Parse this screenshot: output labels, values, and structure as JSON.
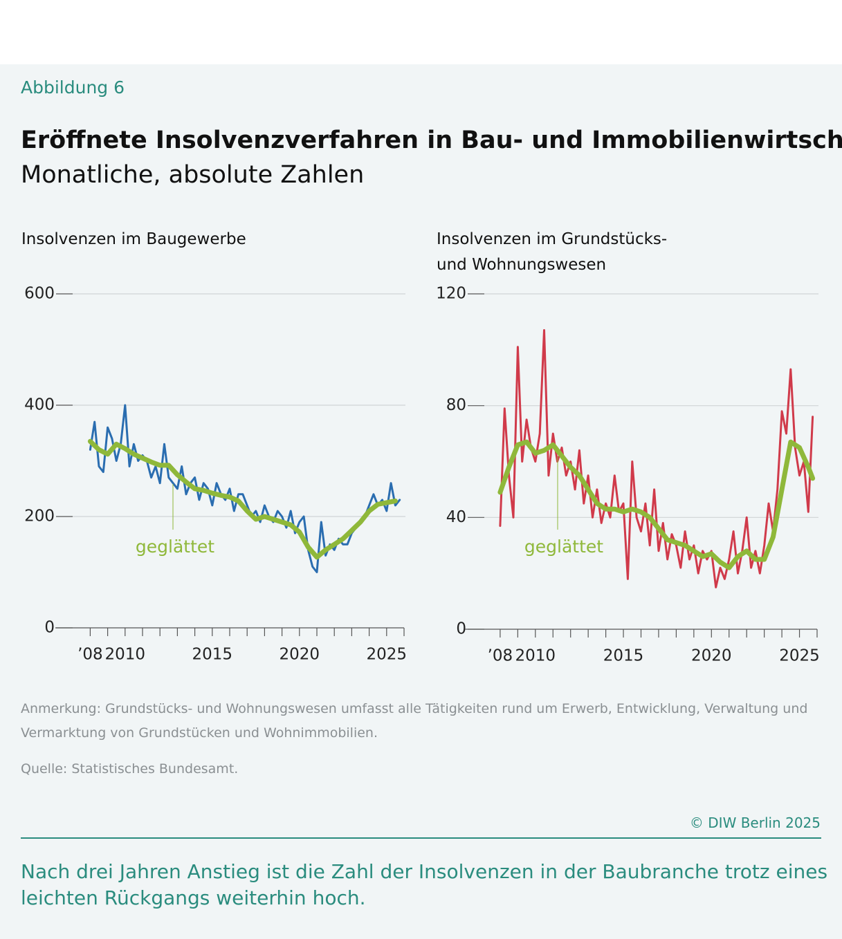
{
  "header": {
    "figure": "Abbildung 6",
    "title": "Eröffnete Insolvenzverfahren in Bau- und Immobilienwirtschaft",
    "subtitle": "Monatliche, absolute Zahlen"
  },
  "chart_data": [
    {
      "type": "line",
      "title": "Insolvenzen im Baugewerbe",
      "xlim": [
        2006,
        2026
      ],
      "xticks": [
        {
          "value": 2008,
          "label": "’08"
        },
        2010,
        2015,
        2020,
        2025
      ],
      "xminorticks": [
        2008,
        2009,
        2010,
        2011,
        2012,
        2013,
        2014,
        2015,
        2016,
        2017,
        2018,
        2019,
        2020,
        2021,
        2022,
        2023,
        2024,
        2025,
        2026
      ],
      "ylim": [
        0,
        600
      ],
      "yticks": [
        0,
        200,
        400,
        600
      ],
      "grid": true,
      "series": [
        {
          "color": "#2a6db0",
          "x": [
            2008,
            2008.25,
            2008.5,
            2008.75,
            2009,
            2009.25,
            2009.5,
            2009.75,
            2010,
            2010.25,
            2010.5,
            2010.75,
            2011,
            2011.25,
            2011.5,
            2011.75,
            2012,
            2012.25,
            2012.5,
            2012.75,
            2013,
            2013.25,
            2013.5,
            2013.75,
            2014,
            2014.25,
            2014.5,
            2014.75,
            2015,
            2015.25,
            2015.5,
            2015.75,
            2016,
            2016.25,
            2016.5,
            2016.75,
            2017,
            2017.25,
            2017.5,
            2017.75,
            2018,
            2018.25,
            2018.5,
            2018.75,
            2019,
            2019.25,
            2019.5,
            2019.75,
            2020,
            2020.25,
            2020.5,
            2020.75,
            2021,
            2021.25,
            2021.5,
            2021.75,
            2022,
            2022.25,
            2022.5,
            2022.75,
            2023,
            2023.25,
            2023.5,
            2023.75,
            2024,
            2024.25,
            2024.5,
            2024.75,
            2025,
            2025.25,
            2025.5,
            2025.75
          ],
          "values": [
            320,
            370,
            290,
            280,
            360,
            340,
            300,
            330,
            400,
            290,
            330,
            300,
            310,
            300,
            270,
            290,
            260,
            330,
            270,
            260,
            250,
            290,
            240,
            260,
            270,
            230,
            260,
            250,
            220,
            260,
            240,
            230,
            250,
            210,
            240,
            240,
            220,
            200,
            210,
            190,
            220,
            200,
            190,
            210,
            200,
            180,
            210,
            170,
            190,
            200,
            140,
            110,
            100,
            190,
            130,
            150,
            140,
            160,
            150,
            150,
            170,
            180,
            190,
            200,
            220,
            240,
            220,
            230,
            210,
            260,
            220,
            230
          ]
        },
        {
          "name": "geglättet",
          "color": "#8fb83a",
          "x": [
            2008,
            2008.5,
            2009,
            2009.5,
            2010,
            2010.5,
            2011,
            2011.5,
            2012,
            2012.5,
            2013,
            2013.5,
            2014,
            2014.5,
            2015,
            2015.5,
            2016,
            2016.5,
            2017,
            2017.5,
            2018,
            2018.5,
            2019,
            2019.5,
            2020,
            2020.5,
            2021,
            2021.5,
            2022,
            2022.5,
            2023,
            2023.5,
            2024,
            2024.5,
            2025,
            2025.5
          ],
          "values": [
            335,
            320,
            312,
            330,
            322,
            312,
            305,
            298,
            292,
            292,
            275,
            262,
            250,
            247,
            242,
            238,
            235,
            228,
            210,
            195,
            200,
            195,
            190,
            185,
            172,
            145,
            127,
            140,
            150,
            160,
            175,
            190,
            210,
            222,
            225,
            228
          ]
        }
      ]
    },
    {
      "type": "line",
      "title": "Insolvenzen im Grundstücks- und Wohnungswesen",
      "xlim": [
        2006,
        2026
      ],
      "xticks": [
        {
          "value": 2008,
          "label": "’08"
        },
        2010,
        2015,
        2020,
        2025
      ],
      "xminorticks": [
        2008,
        2009,
        2010,
        2011,
        2012,
        2013,
        2014,
        2015,
        2016,
        2017,
        2018,
        2019,
        2020,
        2021,
        2022,
        2023,
        2024,
        2025,
        2026
      ],
      "ylim": [
        0,
        120
      ],
      "yticks": [
        0,
        40,
        80,
        120
      ],
      "grid": true,
      "series": [
        {
          "color": "#d03a4a",
          "x": [
            2008,
            2008.25,
            2008.5,
            2008.75,
            2009,
            2009.25,
            2009.5,
            2009.75,
            2010,
            2010.25,
            2010.5,
            2010.75,
            2011,
            2011.25,
            2011.5,
            2011.75,
            2012,
            2012.25,
            2012.5,
            2012.75,
            2013,
            2013.25,
            2013.5,
            2013.75,
            2014,
            2014.25,
            2014.5,
            2014.75,
            2015,
            2015.25,
            2015.5,
            2015.75,
            2016,
            2016.25,
            2016.5,
            2016.75,
            2017,
            2017.25,
            2017.5,
            2017.75,
            2018,
            2018.25,
            2018.5,
            2018.75,
            2019,
            2019.25,
            2019.5,
            2019.75,
            2020,
            2020.25,
            2020.5,
            2020.75,
            2021,
            2021.25,
            2021.5,
            2021.75,
            2022,
            2022.25,
            2022.5,
            2022.75,
            2023,
            2023.25,
            2023.5,
            2023.75,
            2024,
            2024.25,
            2024.5,
            2024.75,
            2025,
            2025.25,
            2025.5,
            2025.75
          ],
          "values": [
            37,
            79,
            55,
            40,
            101,
            60,
            75,
            65,
            60,
            70,
            107,
            55,
            70,
            60,
            65,
            55,
            60,
            50,
            64,
            45,
            55,
            40,
            50,
            38,
            45,
            40,
            55,
            42,
            45,
            18,
            60,
            40,
            35,
            45,
            30,
            50,
            28,
            38,
            25,
            34,
            30,
            22,
            35,
            25,
            30,
            20,
            28,
            25,
            28,
            15,
            22,
            18,
            25,
            35,
            20,
            28,
            40,
            22,
            28,
            20,
            30,
            45,
            35,
            50,
            78,
            70,
            93,
            65,
            55,
            60,
            42,
            76
          ]
        },
        {
          "name": "geglättet",
          "color": "#8fb83a",
          "x": [
            2008,
            2008.5,
            2009,
            2009.5,
            2010,
            2010.5,
            2011,
            2011.5,
            2012,
            2012.5,
            2013,
            2013.5,
            2014,
            2014.5,
            2015,
            2015.5,
            2016,
            2016.5,
            2017,
            2017.5,
            2018,
            2018.5,
            2019,
            2019.5,
            2020,
            2020.5,
            2021,
            2021.5,
            2022,
            2022.5,
            2023,
            2023.5,
            2024,
            2024.5,
            2025,
            2025.5,
            2025.75
          ],
          "values": [
            49,
            58,
            66,
            67,
            63,
            64,
            66,
            62,
            58,
            55,
            50,
            45,
            43,
            43,
            42,
            43,
            42,
            40,
            36,
            32,
            31,
            30,
            28,
            26,
            27,
            24,
            22,
            26,
            28,
            25,
            25,
            33,
            50,
            67,
            65,
            58,
            54
          ]
        }
      ]
    }
  ],
  "notes": {
    "remark": "Anmerkung: Grundstücks- und Wohnungswesen umfasst alle Tätigkeiten rund um Erwerb, Entwicklung, Verwaltung und Vermarktung von Grundstücken und Wohnimmobilien.",
    "source": "Quelle: Statistisches Bundesamt.",
    "copyright": "© DIW Berlin 2025",
    "caption": "Nach drei Jahren Anstieg ist die Zahl der Insolvenzen in der Baubranche trotz eines leichten Rückgangs weiterhin hoch."
  }
}
